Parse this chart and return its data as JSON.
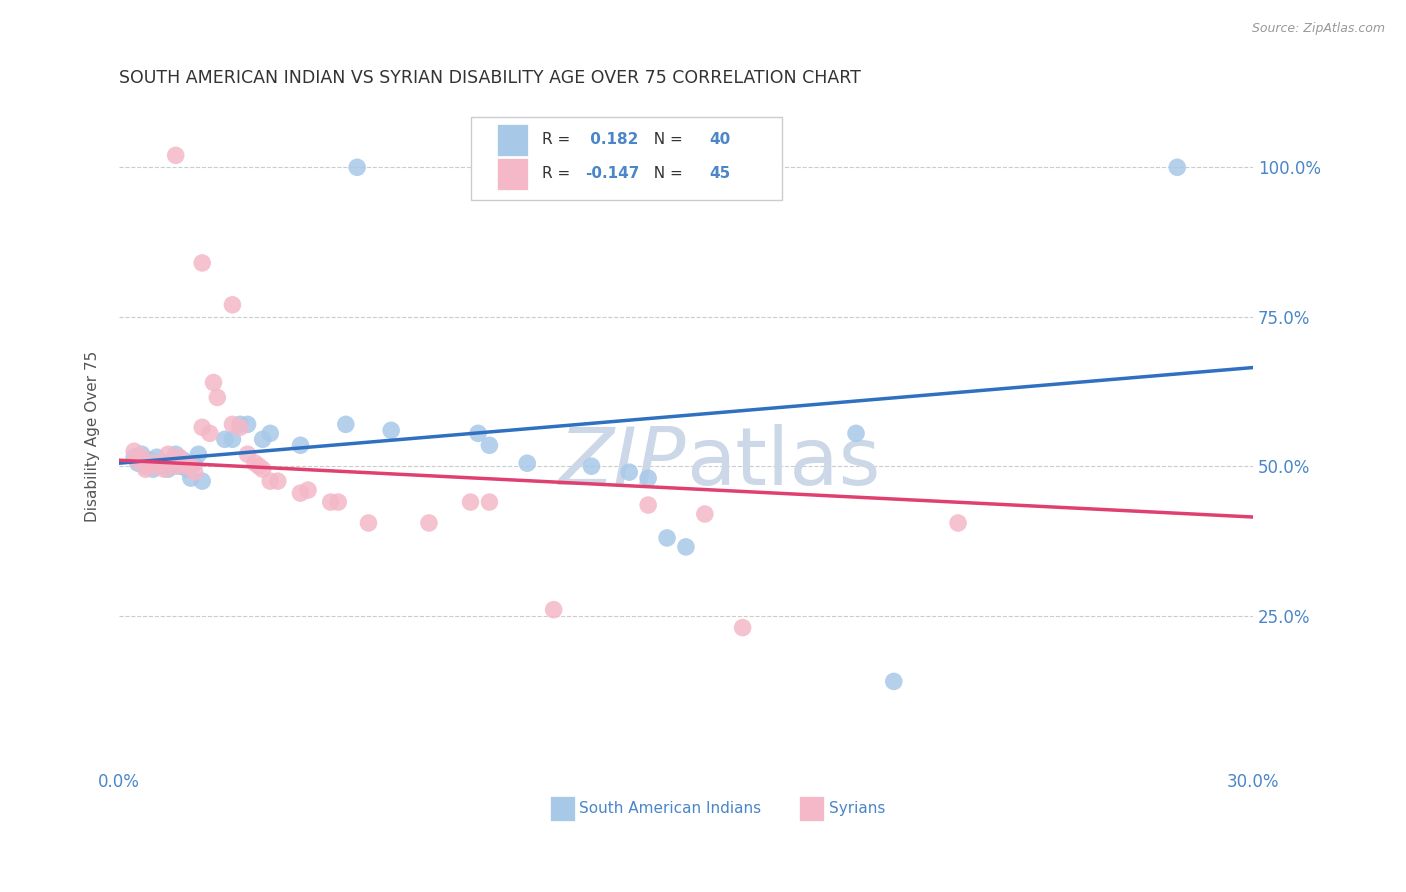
{
  "title": "SOUTH AMERICAN INDIAN VS SYRIAN DISABILITY AGE OVER 75 CORRELATION CHART",
  "source": "Source: ZipAtlas.com",
  "ylabel": "Disability Age Over 75",
  "legend_blue_r": "0.182",
  "legend_blue_n": "40",
  "legend_pink_r": "-0.147",
  "legend_pink_n": "45",
  "legend_blue_label": "South American Indians",
  "legend_pink_label": "Syrians",
  "background_color": "#ffffff",
  "blue_color": "#a8c8e8",
  "pink_color": "#f4b8c8",
  "blue_line_color": "#3070c0",
  "pink_line_color": "#e04070",
  "title_color": "#333333",
  "axis_label_color": "#4a86c8",
  "watermark_color": "#ccd8e8",
  "blue_points": [
    [
      0.004,
      0.515
    ],
    [
      0.005,
      0.505
    ],
    [
      0.006,
      0.52
    ],
    [
      0.007,
      0.5
    ],
    [
      0.008,
      0.51
    ],
    [
      0.009,
      0.495
    ],
    [
      0.01,
      0.515
    ],
    [
      0.011,
      0.5
    ],
    [
      0.012,
      0.505
    ],
    [
      0.013,
      0.495
    ],
    [
      0.014,
      0.5
    ],
    [
      0.015,
      0.52
    ],
    [
      0.016,
      0.5
    ],
    [
      0.017,
      0.51
    ],
    [
      0.018,
      0.495
    ],
    [
      0.019,
      0.48
    ],
    [
      0.02,
      0.505
    ],
    [
      0.021,
      0.52
    ],
    [
      0.022,
      0.475
    ],
    [
      0.028,
      0.545
    ],
    [
      0.03,
      0.545
    ],
    [
      0.032,
      0.57
    ],
    [
      0.034,
      0.57
    ],
    [
      0.038,
      0.545
    ],
    [
      0.04,
      0.555
    ],
    [
      0.048,
      0.535
    ],
    [
      0.06,
      0.57
    ],
    [
      0.072,
      0.56
    ],
    [
      0.095,
      0.555
    ],
    [
      0.098,
      0.535
    ],
    [
      0.108,
      0.505
    ],
    [
      0.125,
      0.5
    ],
    [
      0.135,
      0.49
    ],
    [
      0.14,
      0.48
    ],
    [
      0.145,
      0.38
    ],
    [
      0.15,
      0.365
    ],
    [
      0.195,
      0.555
    ],
    [
      0.205,
      0.14
    ],
    [
      0.063,
      1.0
    ],
    [
      0.28,
      1.0
    ]
  ],
  "pink_points": [
    [
      0.004,
      0.525
    ],
    [
      0.005,
      0.51
    ],
    [
      0.006,
      0.515
    ],
    [
      0.007,
      0.495
    ],
    [
      0.008,
      0.5
    ],
    [
      0.009,
      0.505
    ],
    [
      0.01,
      0.5
    ],
    [
      0.011,
      0.505
    ],
    [
      0.012,
      0.495
    ],
    [
      0.013,
      0.52
    ],
    [
      0.014,
      0.51
    ],
    [
      0.015,
      0.5
    ],
    [
      0.016,
      0.515
    ],
    [
      0.017,
      0.505
    ],
    [
      0.018,
      0.5
    ],
    [
      0.019,
      0.5
    ],
    [
      0.02,
      0.49
    ],
    [
      0.022,
      0.565
    ],
    [
      0.024,
      0.555
    ],
    [
      0.025,
      0.64
    ],
    [
      0.026,
      0.615
    ],
    [
      0.03,
      0.57
    ],
    [
      0.032,
      0.565
    ],
    [
      0.034,
      0.52
    ],
    [
      0.036,
      0.505
    ],
    [
      0.037,
      0.5
    ],
    [
      0.038,
      0.495
    ],
    [
      0.04,
      0.475
    ],
    [
      0.042,
      0.475
    ],
    [
      0.048,
      0.455
    ],
    [
      0.05,
      0.46
    ],
    [
      0.056,
      0.44
    ],
    [
      0.058,
      0.44
    ],
    [
      0.066,
      0.405
    ],
    [
      0.082,
      0.405
    ],
    [
      0.093,
      0.44
    ],
    [
      0.098,
      0.44
    ],
    [
      0.115,
      0.26
    ],
    [
      0.14,
      0.435
    ],
    [
      0.155,
      0.42
    ],
    [
      0.165,
      0.23
    ],
    [
      0.222,
      0.405
    ],
    [
      0.022,
      0.84
    ],
    [
      0.03,
      0.77
    ],
    [
      0.015,
      1.02
    ]
  ],
  "xlim": [
    0.0,
    0.3
  ],
  "ylim": [
    0.0,
    1.1
  ],
  "ytick_vals": [
    0.25,
    0.5,
    0.75,
    1.0
  ],
  "grid_color": "#cccccc",
  "dpi": 100
}
